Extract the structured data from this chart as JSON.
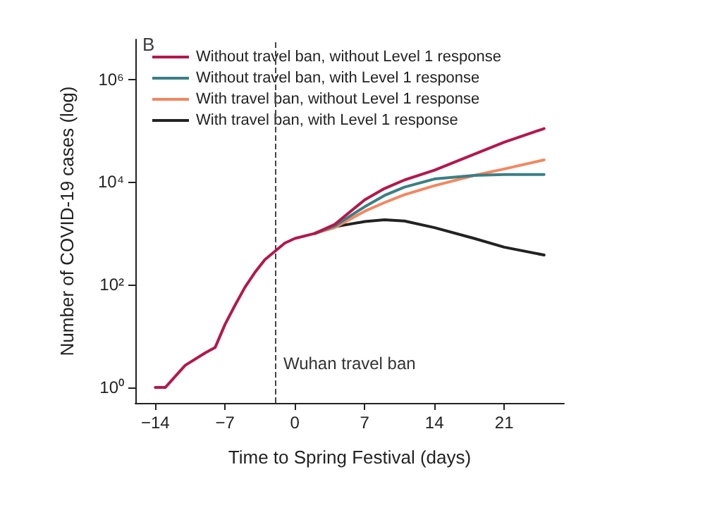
{
  "chart_data": {
    "type": "line",
    "title": "B",
    "xlabel": "Time to Spring Festival (days)",
    "ylabel": "Number of COVID-19 cases (log)",
    "x": [
      -14,
      -13,
      -11,
      -9,
      -8,
      -7,
      -6,
      -5,
      -4,
      -3,
      -2,
      -1,
      0,
      2,
      4,
      7,
      9,
      11,
      14,
      18,
      21,
      25
    ],
    "series": [
      {
        "name": "Without travel ban, without Level 1 response",
        "color": "#b5174b",
        "values": [
          1,
          1,
          2.7,
          4.7,
          6,
          17,
          40,
          90,
          175,
          310,
          450,
          650,
          800,
          1000,
          1500,
          4500,
          7500,
          11000,
          17000,
          35000,
          60000,
          110000
        ]
      },
      {
        "name": "Without travel ban, with Level 1 response",
        "color": "#3a7f86",
        "values": [
          null,
          null,
          null,
          null,
          null,
          null,
          null,
          null,
          null,
          null,
          null,
          null,
          null,
          1000,
          1400,
          3300,
          5500,
          8000,
          11500,
          13500,
          14000,
          14000
        ]
      },
      {
        "name": "With travel ban, without Level 1 response",
        "color": "#f4865f",
        "values": [
          null,
          null,
          null,
          null,
          null,
          null,
          null,
          null,
          null,
          null,
          null,
          null,
          null,
          1000,
          1300,
          2700,
          4000,
          5700,
          8500,
          13500,
          18000,
          27000
        ]
      },
      {
        "name": "With travel ban, with Level 1 response",
        "color": "#222222",
        "values": [
          null,
          null,
          null,
          null,
          null,
          null,
          null,
          null,
          null,
          null,
          null,
          null,
          null,
          1000,
          1350,
          1700,
          1850,
          1750,
          1300,
          800,
          540,
          380
        ]
      }
    ],
    "xlim": [
      -16,
      27
    ],
    "xticks": [
      {
        "value": -14,
        "label": "−14"
      },
      {
        "value": -7,
        "label": "−7"
      },
      0,
      7,
      14,
      21
    ],
    "ylim": [
      0.5,
      6000000
    ],
    "yticks": [
      {
        "value": 1,
        "label": "10⁰"
      },
      {
        "value": 100,
        "label": "10²"
      },
      {
        "value": 10000,
        "label": "10⁴"
      },
      {
        "value": 1000000,
        "label": "10⁶"
      }
    ],
    "log": "y",
    "grid": false,
    "legend": "top left",
    "marker": "none",
    "line_style": "solid",
    "ref_lines": [
      {
        "axis": "x",
        "value": -2,
        "label": "Wuhan travel ban",
        "color": "#444444",
        "line_style": "dashed"
      }
    ]
  }
}
